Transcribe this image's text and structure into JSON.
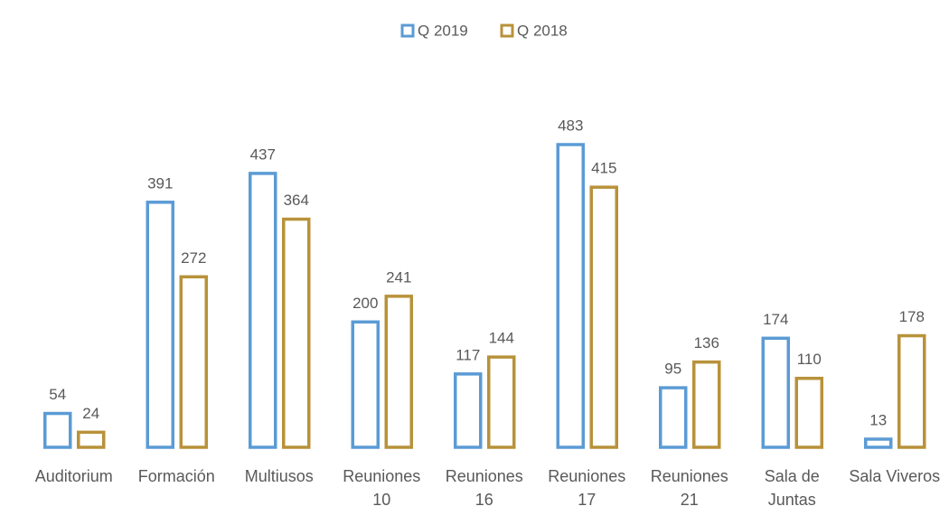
{
  "chart_data": {
    "type": "bar",
    "categories": [
      "Auditorium",
      "Formación",
      "Multiusos",
      "Reuniones 10",
      "Reuniones 16",
      "Reuniones 17",
      "Reuniones 21",
      "Sala de Juntas",
      "Sala Viveros"
    ],
    "series": [
      {
        "name": "Q 2019",
        "color": "#5b9bd5",
        "values": [
          54,
          391,
          437,
          200,
          117,
          483,
          95,
          174,
          13
        ]
      },
      {
        "name": "Q 2018",
        "color": "#b8923a",
        "values": [
          24,
          272,
          364,
          241,
          144,
          415,
          136,
          110,
          178
        ]
      }
    ],
    "legend": "top"
  }
}
